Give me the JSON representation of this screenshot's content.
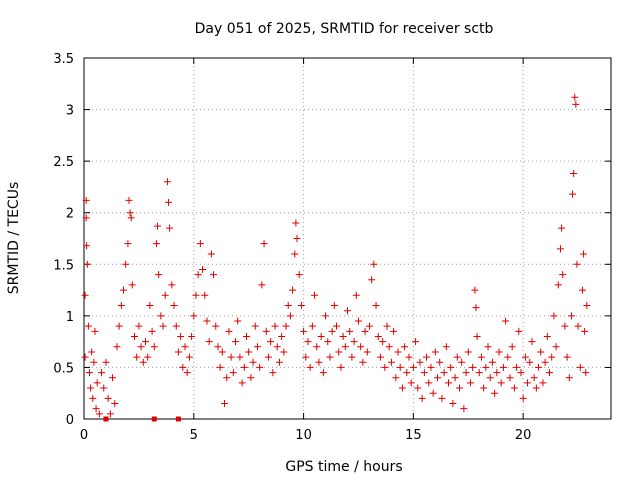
{
  "chart_data": {
    "type": "scatter",
    "title": "Day 051 of 2025, SRMTID for receiver sctb",
    "xlabel": "GPS time / hours",
    "ylabel": "SRMTID / TECUs",
    "xlim": [
      0,
      24
    ],
    "ylim": [
      0,
      3.5
    ],
    "x_ticks": [
      0,
      5,
      10,
      15,
      20
    ],
    "x_tick_labels": [
      "0",
      "5",
      "10",
      "15",
      "20"
    ],
    "y_ticks": [
      0,
      0.5,
      1,
      1.5,
      2,
      2.5,
      3,
      3.5
    ],
    "y_tick_labels": [
      "0",
      "0.5",
      "1",
      "1.5",
      "2",
      "2.5",
      "3",
      "3.5"
    ],
    "grid": true,
    "marker": "plus",
    "colors": {
      "marker": "#e00000",
      "grid": "#a0a0a0",
      "axes": "#000000"
    },
    "series": [
      {
        "name": "SRMTID",
        "points": [
          [
            0.05,
            1.2
          ],
          [
            0.05,
            0.6
          ],
          [
            0.1,
            2.12
          ],
          [
            0.1,
            1.95
          ],
          [
            0.12,
            1.68
          ],
          [
            0.15,
            1.5
          ],
          [
            0.2,
            0.9
          ],
          [
            0.25,
            0.45
          ],
          [
            0.3,
            0.3
          ],
          [
            0.35,
            0.65
          ],
          [
            0.4,
            0.2
          ],
          [
            0.45,
            0.55
          ],
          [
            0.5,
            0.85
          ],
          [
            0.55,
            0.1
          ],
          [
            0.6,
            0.35
          ],
          [
            0.7,
            0.05
          ],
          [
            0.8,
            0.45
          ],
          [
            0.9,
            0.3
          ],
          [
            1.0,
            0.55
          ],
          [
            1.1,
            0.2
          ],
          [
            1.2,
            0.05
          ],
          [
            1.3,
            0.4
          ],
          [
            1.4,
            0.15
          ],
          [
            1.5,
            0.7
          ],
          [
            1.6,
            0.9
          ],
          [
            1.7,
            1.1
          ],
          [
            1.8,
            1.25
          ],
          [
            1.9,
            1.5
          ],
          [
            2.0,
            1.7
          ],
          [
            2.05,
            2.12
          ],
          [
            2.1,
            2.0
          ],
          [
            2.15,
            1.95
          ],
          [
            2.2,
            1.3
          ],
          [
            2.3,
            0.8
          ],
          [
            2.4,
            0.6
          ],
          [
            2.5,
            0.9
          ],
          [
            2.6,
            0.7
          ],
          [
            2.7,
            0.55
          ],
          [
            2.8,
            0.75
          ],
          [
            2.9,
            0.6
          ],
          [
            3.0,
            1.1
          ],
          [
            3.1,
            0.85
          ],
          [
            3.2,
            0.7
          ],
          [
            3.3,
            1.7
          ],
          [
            3.35,
            1.87
          ],
          [
            3.4,
            1.4
          ],
          [
            3.5,
            1.0
          ],
          [
            3.6,
            0.9
          ],
          [
            3.7,
            1.2
          ],
          [
            3.8,
            2.3
          ],
          [
            3.85,
            2.1
          ],
          [
            3.9,
            1.85
          ],
          [
            4.0,
            1.3
          ],
          [
            4.1,
            1.1
          ],
          [
            4.2,
            0.9
          ],
          [
            4.3,
            0.65
          ],
          [
            4.4,
            0.8
          ],
          [
            4.5,
            0.5
          ],
          [
            4.6,
            0.7
          ],
          [
            4.7,
            0.45
          ],
          [
            4.8,
            0.6
          ],
          [
            4.9,
            0.8
          ],
          [
            5.0,
            1.0
          ],
          [
            5.1,
            1.2
          ],
          [
            5.2,
            1.4
          ],
          [
            5.3,
            1.7
          ],
          [
            5.4,
            1.45
          ],
          [
            5.5,
            1.2
          ],
          [
            5.6,
            0.95
          ],
          [
            5.7,
            0.75
          ],
          [
            5.8,
            1.6
          ],
          [
            5.9,
            1.4
          ],
          [
            6.0,
            0.9
          ],
          [
            6.1,
            0.7
          ],
          [
            6.2,
            0.5
          ],
          [
            6.3,
            0.65
          ],
          [
            6.4,
            0.15
          ],
          [
            6.5,
            0.4
          ],
          [
            6.6,
            0.85
          ],
          [
            6.7,
            0.6
          ],
          [
            6.8,
            0.45
          ],
          [
            6.9,
            0.75
          ],
          [
            7.0,
            0.95
          ],
          [
            7.1,
            0.6
          ],
          [
            7.2,
            0.35
          ],
          [
            7.3,
            0.5
          ],
          [
            7.4,
            0.8
          ],
          [
            7.5,
            0.65
          ],
          [
            7.6,
            0.4
          ],
          [
            7.7,
            0.55
          ],
          [
            7.8,
            0.9
          ],
          [
            7.9,
            0.7
          ],
          [
            8.0,
            0.5
          ],
          [
            8.1,
            1.3
          ],
          [
            8.2,
            1.7
          ],
          [
            8.3,
            0.85
          ],
          [
            8.4,
            0.6
          ],
          [
            8.5,
            0.75
          ],
          [
            8.6,
            0.45
          ],
          [
            8.7,
            0.9
          ],
          [
            8.8,
            0.7
          ],
          [
            8.9,
            0.55
          ],
          [
            9.0,
            0.8
          ],
          [
            9.1,
            0.65
          ],
          [
            9.2,
            0.9
          ],
          [
            9.3,
            1.1
          ],
          [
            9.4,
            1.0
          ],
          [
            9.5,
            1.25
          ],
          [
            9.6,
            1.6
          ],
          [
            9.65,
            1.9
          ],
          [
            9.7,
            1.75
          ],
          [
            9.8,
            1.4
          ],
          [
            9.9,
            1.1
          ],
          [
            10.0,
            0.85
          ],
          [
            10.1,
            0.6
          ],
          [
            10.2,
            0.75
          ],
          [
            10.3,
            0.5
          ],
          [
            10.4,
            0.9
          ],
          [
            10.5,
            1.2
          ],
          [
            10.6,
            0.7
          ],
          [
            10.7,
            0.55
          ],
          [
            10.8,
            0.8
          ],
          [
            10.9,
            0.45
          ],
          [
            11.0,
            1.0
          ],
          [
            11.1,
            0.75
          ],
          [
            11.2,
            0.6
          ],
          [
            11.3,
            0.85
          ],
          [
            11.4,
            1.1
          ],
          [
            11.5,
            0.9
          ],
          [
            11.6,
            0.65
          ],
          [
            11.7,
            0.5
          ],
          [
            11.8,
            0.8
          ],
          [
            11.9,
            0.7
          ],
          [
            12.0,
            1.05
          ],
          [
            12.1,
            0.85
          ],
          [
            12.2,
            0.6
          ],
          [
            12.3,
            0.75
          ],
          [
            12.4,
            1.2
          ],
          [
            12.5,
            0.95
          ],
          [
            12.6,
            0.7
          ],
          [
            12.7,
            0.55
          ],
          [
            12.8,
            0.85
          ],
          [
            12.9,
            0.65
          ],
          [
            13.0,
            0.9
          ],
          [
            13.1,
            1.35
          ],
          [
            13.2,
            1.5
          ],
          [
            13.3,
            1.1
          ],
          [
            13.4,
            0.8
          ],
          [
            13.5,
            0.6
          ],
          [
            13.6,
            0.75
          ],
          [
            13.7,
            0.5
          ],
          [
            13.8,
            0.9
          ],
          [
            13.9,
            0.7
          ],
          [
            14.0,
            0.55
          ],
          [
            14.1,
            0.85
          ],
          [
            14.2,
            0.4
          ],
          [
            14.3,
            0.65
          ],
          [
            14.4,
            0.5
          ],
          [
            14.5,
            0.3
          ],
          [
            14.6,
            0.7
          ],
          [
            14.7,
            0.45
          ],
          [
            14.8,
            0.6
          ],
          [
            14.9,
            0.35
          ],
          [
            15.0,
            0.5
          ],
          [
            15.1,
            0.75
          ],
          [
            15.2,
            0.3
          ],
          [
            15.3,
            0.55
          ],
          [
            15.4,
            0.2
          ],
          [
            15.5,
            0.45
          ],
          [
            15.6,
            0.6
          ],
          [
            15.7,
            0.35
          ],
          [
            15.8,
            0.5
          ],
          [
            15.9,
            0.25
          ],
          [
            16.0,
            0.65
          ],
          [
            16.1,
            0.4
          ],
          [
            16.2,
            0.55
          ],
          [
            16.3,
            0.2
          ],
          [
            16.4,
            0.45
          ],
          [
            16.5,
            0.7
          ],
          [
            16.6,
            0.35
          ],
          [
            16.7,
            0.5
          ],
          [
            16.8,
            0.15
          ],
          [
            16.9,
            0.4
          ],
          [
            17.0,
            0.6
          ],
          [
            17.1,
            0.3
          ],
          [
            17.2,
            0.55
          ],
          [
            17.3,
            0.1
          ],
          [
            17.4,
            0.45
          ],
          [
            17.5,
            0.65
          ],
          [
            17.6,
            0.35
          ],
          [
            17.7,
            0.5
          ],
          [
            17.8,
            1.25
          ],
          [
            17.85,
            1.08
          ],
          [
            17.9,
            0.8
          ],
          [
            18.0,
            0.45
          ],
          [
            18.1,
            0.6
          ],
          [
            18.2,
            0.3
          ],
          [
            18.3,
            0.5
          ],
          [
            18.4,
            0.7
          ],
          [
            18.5,
            0.4
          ],
          [
            18.6,
            0.55
          ],
          [
            18.7,
            0.25
          ],
          [
            18.8,
            0.45
          ],
          [
            18.9,
            0.65
          ],
          [
            19.0,
            0.35
          ],
          [
            19.1,
            0.5
          ],
          [
            19.2,
            0.95
          ],
          [
            19.3,
            0.6
          ],
          [
            19.4,
            0.4
          ],
          [
            19.5,
            0.7
          ],
          [
            19.6,
            0.3
          ],
          [
            19.7,
            0.5
          ],
          [
            19.8,
            0.85
          ],
          [
            19.9,
            0.45
          ],
          [
            20.0,
            0.2
          ],
          [
            20.1,
            0.6
          ],
          [
            20.2,
            0.35
          ],
          [
            20.3,
            0.55
          ],
          [
            20.4,
            0.75
          ],
          [
            20.5,
            0.4
          ],
          [
            20.6,
            0.3
          ],
          [
            20.7,
            0.5
          ],
          [
            20.8,
            0.65
          ],
          [
            20.9,
            0.35
          ],
          [
            21.0,
            0.55
          ],
          [
            21.1,
            0.8
          ],
          [
            21.2,
            0.45
          ],
          [
            21.3,
            0.6
          ],
          [
            21.4,
            1.0
          ],
          [
            21.5,
            0.7
          ],
          [
            21.6,
            1.3
          ],
          [
            21.7,
            1.65
          ],
          [
            21.75,
            1.85
          ],
          [
            21.8,
            1.4
          ],
          [
            21.9,
            0.9
          ],
          [
            22.0,
            0.6
          ],
          [
            22.1,
            0.4
          ],
          [
            22.2,
            1.0
          ],
          [
            22.25,
            2.18
          ],
          [
            22.3,
            2.38
          ],
          [
            22.35,
            3.12
          ],
          [
            22.4,
            3.05
          ],
          [
            22.45,
            1.5
          ],
          [
            22.5,
            0.9
          ],
          [
            22.6,
            0.5
          ],
          [
            22.7,
            1.25
          ],
          [
            22.75,
            1.6
          ],
          [
            22.8,
            0.85
          ],
          [
            22.85,
            0.45
          ],
          [
            22.9,
            1.1
          ]
        ]
      }
    ],
    "highlight_points": [
      [
        1.0,
        0.0
      ],
      [
        3.2,
        0.0
      ],
      [
        4.3,
        0.0
      ]
    ]
  }
}
